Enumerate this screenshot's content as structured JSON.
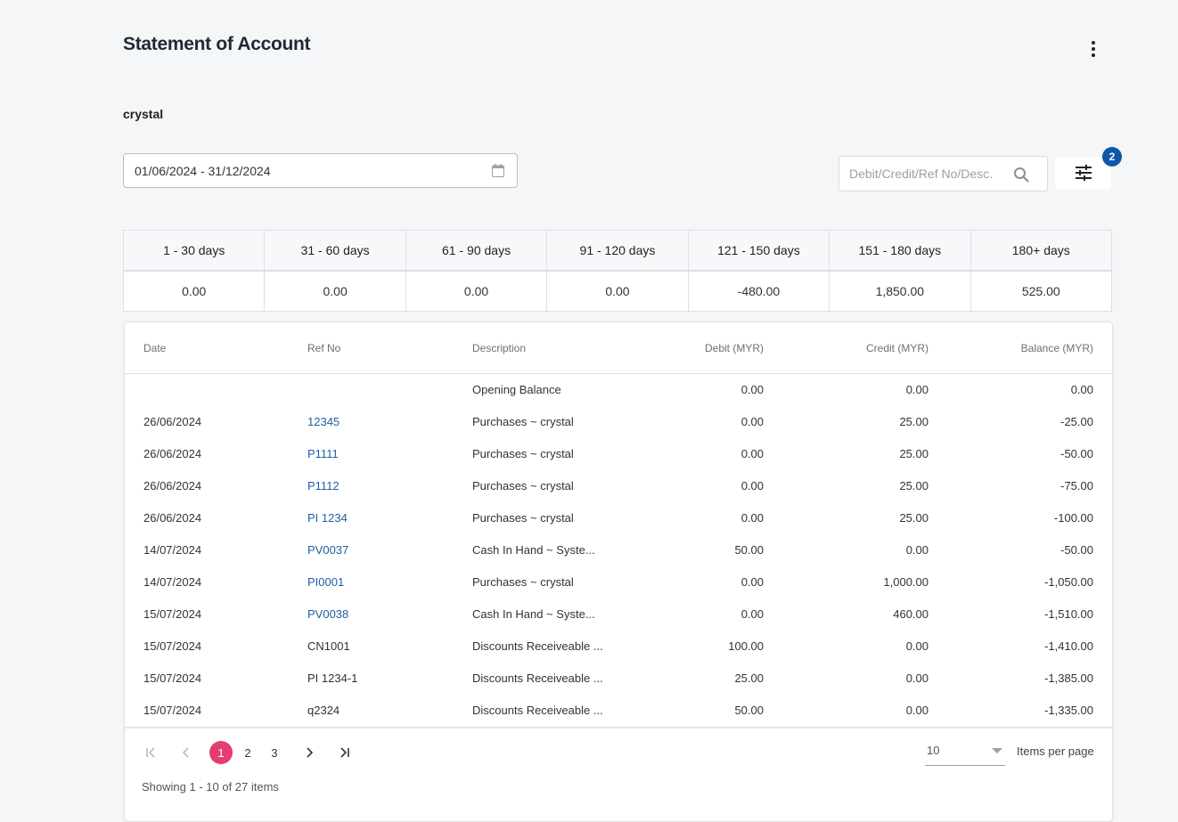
{
  "header": {
    "title": "Statement of Account"
  },
  "customer": "crystal",
  "date_range": "01/06/2024 - 31/12/2024",
  "search": {
    "placeholder": "Debit/Credit/Ref No/Desc.",
    "value": ""
  },
  "filter": {
    "badge_count": "2"
  },
  "aging": {
    "headers": [
      "1 - 30 days",
      "31 - 60 days",
      "61 - 90 days",
      "91 - 120 days",
      "121 - 150 days",
      "151 - 180 days",
      "180+ days"
    ],
    "values": [
      "0.00",
      "0.00",
      "0.00",
      "0.00",
      "-480.00",
      "1,850.00",
      "525.00"
    ]
  },
  "table": {
    "columns": {
      "date": "Date",
      "ref": "Ref No",
      "desc": "Description",
      "debit": "Debit (MYR)",
      "credit": "Credit (MYR)",
      "balance": "Balance (MYR)"
    },
    "rows": [
      {
        "date": "",
        "ref": "",
        "desc": "Opening Balance",
        "debit": "0.00",
        "credit": "0.00",
        "balance": "0.00"
      },
      {
        "date": "26/06/2024",
        "ref": "12345",
        "desc": "Purchases ~ crystal",
        "debit": "0.00",
        "credit": "25.00",
        "balance": "-25.00"
      },
      {
        "date": "26/06/2024",
        "ref": "P1111",
        "desc": "Purchases ~ crystal",
        "debit": "0.00",
        "credit": "25.00",
        "balance": "-50.00"
      },
      {
        "date": "26/06/2024",
        "ref": "P1112",
        "desc": "Purchases ~ crystal",
        "debit": "0.00",
        "credit": "25.00",
        "balance": "-75.00"
      },
      {
        "date": "26/06/2024",
        "ref": "PI 1234",
        "desc": "Purchases ~ crystal",
        "debit": "0.00",
        "credit": "25.00",
        "balance": "-100.00"
      },
      {
        "date": "14/07/2024",
        "ref": "PV0037",
        "desc": "Cash In Hand ~ Syste...",
        "debit": "50.00",
        "credit": "0.00",
        "balance": "-50.00"
      },
      {
        "date": "14/07/2024",
        "ref": "PI0001",
        "desc": "Purchases ~ crystal",
        "debit": "0.00",
        "credit": "1,000.00",
        "balance": "-1,050.00"
      },
      {
        "date": "15/07/2024",
        "ref": "PV0038",
        "desc": "Cash In Hand ~ Syste...",
        "debit": "0.00",
        "credit": "460.00",
        "balance": "-1,510.00"
      },
      {
        "date": "15/07/2024",
        "ref": "CN1001",
        "desc": "Discounts Receiveable ...",
        "debit": "100.00",
        "credit": "0.00",
        "balance": "-1,410.00"
      },
      {
        "date": "15/07/2024",
        "ref": "PI 1234-1",
        "desc": "Discounts Receiveable ...",
        "debit": "25.00",
        "credit": "0.00",
        "balance": "-1,385.00"
      },
      {
        "date": "15/07/2024",
        "ref": "q2324",
        "desc": "Discounts Receiveable ...",
        "debit": "50.00",
        "credit": "0.00",
        "balance": "-1,335.00"
      }
    ]
  },
  "pagination": {
    "pages": [
      "1",
      "2",
      "3"
    ],
    "current": "1",
    "per_page": "10",
    "per_page_label": "Items per page",
    "showing": "Showing 1 - 10 of 27 items"
  },
  "colors": {
    "accent": "#e23e6f",
    "link": "#1d5fa6",
    "badge": "#0e58a8"
  },
  "icons": [
    "more-vert-icon",
    "calendar-icon",
    "search-icon",
    "filter-sliders-icon",
    "first-page-icon",
    "prev-page-icon",
    "next-page-icon",
    "last-page-icon",
    "chevron-down-icon"
  ]
}
